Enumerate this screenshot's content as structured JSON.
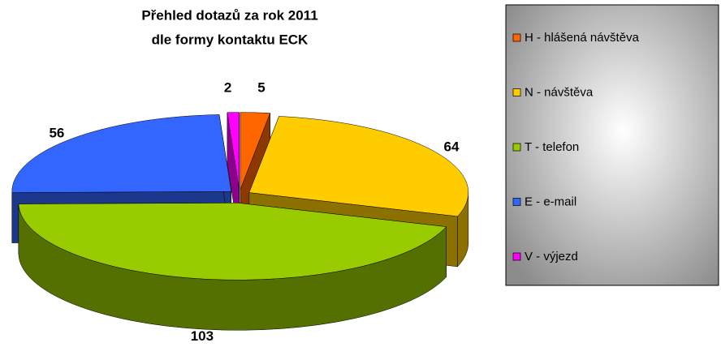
{
  "chart_data": {
    "type": "pie3d",
    "title": [
      "Přehled dotazů za rok 2011",
      "dle formy kontaktu ECK"
    ],
    "categories": [
      "H - hlášená návštěva",
      "N - návštěva",
      "T - telefon",
      "E - e-mail",
      "V - výjezd"
    ],
    "values": [
      5,
      64,
      103,
      56,
      2
    ],
    "colors": [
      "#ff6600",
      "#ffcc00",
      "#99cc00",
      "#3366ff",
      "#ff00ff"
    ],
    "legend": "right"
  }
}
